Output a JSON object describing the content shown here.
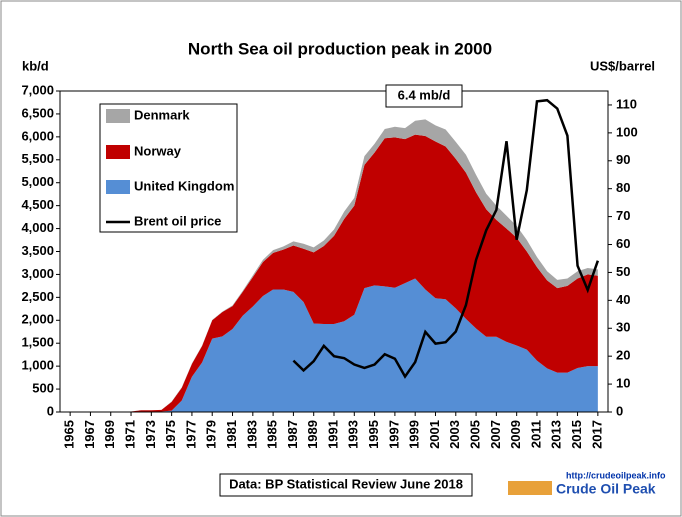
{
  "chart_data": {
    "type": "area",
    "title": "North Sea oil production  peak in 2000",
    "ylabel": "kb/d",
    "y2label": "US$/barrel",
    "annotation": "6.4 mb/d",
    "source": "Data: BP Statistical Review June 2018",
    "logo_url": "http://crudeoilpeak.info",
    "logo_name": "Crude Oil Peak",
    "x": [
      1965,
      1966,
      1967,
      1968,
      1969,
      1970,
      1971,
      1972,
      1973,
      1974,
      1975,
      1976,
      1977,
      1978,
      1979,
      1980,
      1981,
      1982,
      1983,
      1984,
      1985,
      1986,
      1987,
      1988,
      1989,
      1990,
      1991,
      1992,
      1993,
      1994,
      1995,
      1996,
      1997,
      1998,
      1999,
      2000,
      2001,
      2002,
      2003,
      2004,
      2005,
      2006,
      2007,
      2008,
      2009,
      2010,
      2011,
      2012,
      2013,
      2014,
      2015,
      2016,
      2017
    ],
    "xlim": [
      1964,
      2018
    ],
    "xticks": [
      1965,
      1967,
      1969,
      1971,
      1973,
      1975,
      1977,
      1979,
      1981,
      1983,
      1985,
      1987,
      1989,
      1991,
      1993,
      1995,
      1997,
      1999,
      2001,
      2003,
      2005,
      2007,
      2009,
      2011,
      2013,
      2015,
      2017
    ],
    "ylim": [
      0,
      7000
    ],
    "yticks": [
      0,
      500,
      {
        "value": 1000,
        "label": "1,000"
      },
      {
        "value": 1500,
        "label": "1,500"
      },
      {
        "value": 2000,
        "label": "2,000"
      },
      {
        "value": 2500,
        "label": "2,500"
      },
      {
        "value": 3000,
        "label": "3,000"
      },
      {
        "value": 3500,
        "label": "3,500"
      },
      {
        "value": 4000,
        "label": "4,000"
      },
      {
        "value": 4500,
        "label": "4,500"
      },
      {
        "value": 5000,
        "label": "5,000"
      },
      {
        "value": 5500,
        "label": "5,500"
      },
      {
        "value": 6000,
        "label": "6,000"
      },
      {
        "value": 6500,
        "label": "6,500"
      },
      {
        "value": 7000,
        "label": "7,000"
      }
    ],
    "y2lim": [
      0,
      115
    ],
    "y2ticks": [
      0,
      10,
      20,
      30,
      40,
      50,
      60,
      70,
      80,
      90,
      100,
      110
    ],
    "series": [
      {
        "name": "United Kingdom",
        "color": "#558ed5",
        "values": [
          0,
          0,
          0,
          0,
          0,
          0,
          5,
          5,
          5,
          10,
          30,
          250,
          770,
          1080,
          1600,
          1650,
          1810,
          2100,
          2300,
          2530,
          2670,
          2670,
          2620,
          2400,
          1930,
          1920,
          1920,
          1980,
          2120,
          2700,
          2760,
          2740,
          2710,
          2810,
          2910,
          2670,
          2480,
          2460,
          2260,
          2030,
          1820,
          1640,
          1640,
          1530,
          1450,
          1360,
          1120,
          950,
          860,
          860,
          960,
          1000,
          1000
        ]
      },
      {
        "name": "Norway",
        "color": "#c00000",
        "values": [
          0,
          0,
          0,
          0,
          0,
          0,
          6,
          33,
          32,
          35,
          190,
          280,
          280,
          360,
          400,
          530,
          500,
          520,
          640,
          740,
          800,
          870,
          1010,
          1160,
          1550,
          1700,
          1920,
          2230,
          2380,
          2690,
          2900,
          3230,
          3280,
          3140,
          3140,
          3350,
          3420,
          3330,
          3260,
          3190,
          2970,
          2780,
          2550,
          2470,
          2350,
          2140,
          2040,
          1920,
          1840,
          1890,
          1950,
          2000,
          1970
        ]
      },
      {
        "name": "Denmark",
        "color": "#a6a6a6",
        "values": [
          0,
          0,
          0,
          0,
          0,
          0,
          0,
          2,
          2,
          2,
          10,
          10,
          10,
          10,
          10,
          10,
          15,
          20,
          40,
          50,
          60,
          70,
          90,
          110,
          110,
          120,
          140,
          160,
          170,
          190,
          190,
          200,
          230,
          240,
          300,
          360,
          350,
          370,
          370,
          390,
          380,
          340,
          310,
          280,
          260,
          250,
          220,
          200,
          180,
          160,
          160,
          140,
          140
        ]
      },
      {
        "name": "Brent oil price",
        "color": "#000000",
        "axis": "y2",
        "type": "line",
        "values": [
          null,
          null,
          null,
          null,
          null,
          null,
          null,
          null,
          null,
          null,
          null,
          null,
          null,
          null,
          null,
          null,
          null,
          null,
          null,
          null,
          null,
          null,
          18.4,
          14.9,
          18.2,
          23.7,
          20.0,
          19.3,
          17.0,
          15.8,
          17.0,
          20.7,
          19.1,
          12.7,
          17.9,
          28.7,
          24.5,
          25.0,
          28.8,
          38.3,
          54.5,
          65.1,
          72.4,
          97.0,
          61.7,
          79.5,
          111.3,
          111.7,
          108.7,
          99.0,
          52.4,
          43.7,
          54.2
        ]
      }
    ]
  }
}
